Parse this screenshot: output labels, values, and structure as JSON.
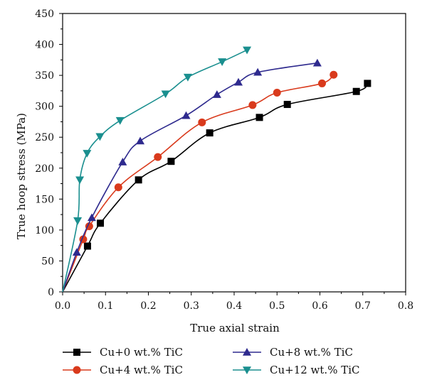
{
  "chart_data": {
    "type": "line",
    "title": "",
    "xlabel": "True axial strain",
    "ylabel": "True hoop stress (MPa)",
    "xlim": [
      0.0,
      0.8
    ],
    "ylim": [
      0,
      450
    ],
    "xticks": [
      "0.0",
      "0.1",
      "0.2",
      "0.3",
      "0.4",
      "0.5",
      "0.6",
      "0.7",
      "0.8"
    ],
    "yticks": [
      "0",
      "50",
      "100",
      "150",
      "200",
      "250",
      "300",
      "350",
      "400",
      "450"
    ],
    "grid": false,
    "legend_position": "bottom",
    "series": [
      {
        "name": "Cu+0 wt.% TiC",
        "color": "#000000",
        "marker": "square",
        "x": [
          0.0,
          0.058,
          0.088,
          0.177,
          0.253,
          0.343,
          0.459,
          0.524,
          0.685,
          0.711
        ],
        "y": [
          0,
          74,
          111,
          181,
          211,
          257,
          282,
          303,
          324,
          337
        ]
      },
      {
        "name": "Cu+4 wt.% TiC",
        "color": "#d93a1c",
        "marker": "circle",
        "x": [
          0.0,
          0.048,
          0.062,
          0.13,
          0.222,
          0.325,
          0.443,
          0.5,
          0.605,
          0.632
        ],
        "y": [
          0,
          85,
          106,
          169,
          218,
          274,
          302,
          322,
          337,
          351
        ]
      },
      {
        "name": "Cu+8 wt.% TiC",
        "color": "#2e2a8e",
        "marker": "triangle-up",
        "x": [
          0.0,
          0.033,
          0.068,
          0.14,
          0.181,
          0.288,
          0.36,
          0.41,
          0.455,
          0.594
        ],
        "y": [
          0,
          64,
          120,
          210,
          244,
          285,
          319,
          339,
          355,
          370
        ]
      },
      {
        "name": "Cu+12 wt.% TiC",
        "color": "#1a8f8f",
        "marker": "triangle-down",
        "x": [
          0.0,
          0.035,
          0.04,
          0.057,
          0.087,
          0.134,
          0.24,
          0.292,
          0.372,
          0.43
        ],
        "y": [
          0,
          115,
          181,
          224,
          251,
          277,
          320,
          347,
          372,
          391
        ]
      }
    ]
  }
}
